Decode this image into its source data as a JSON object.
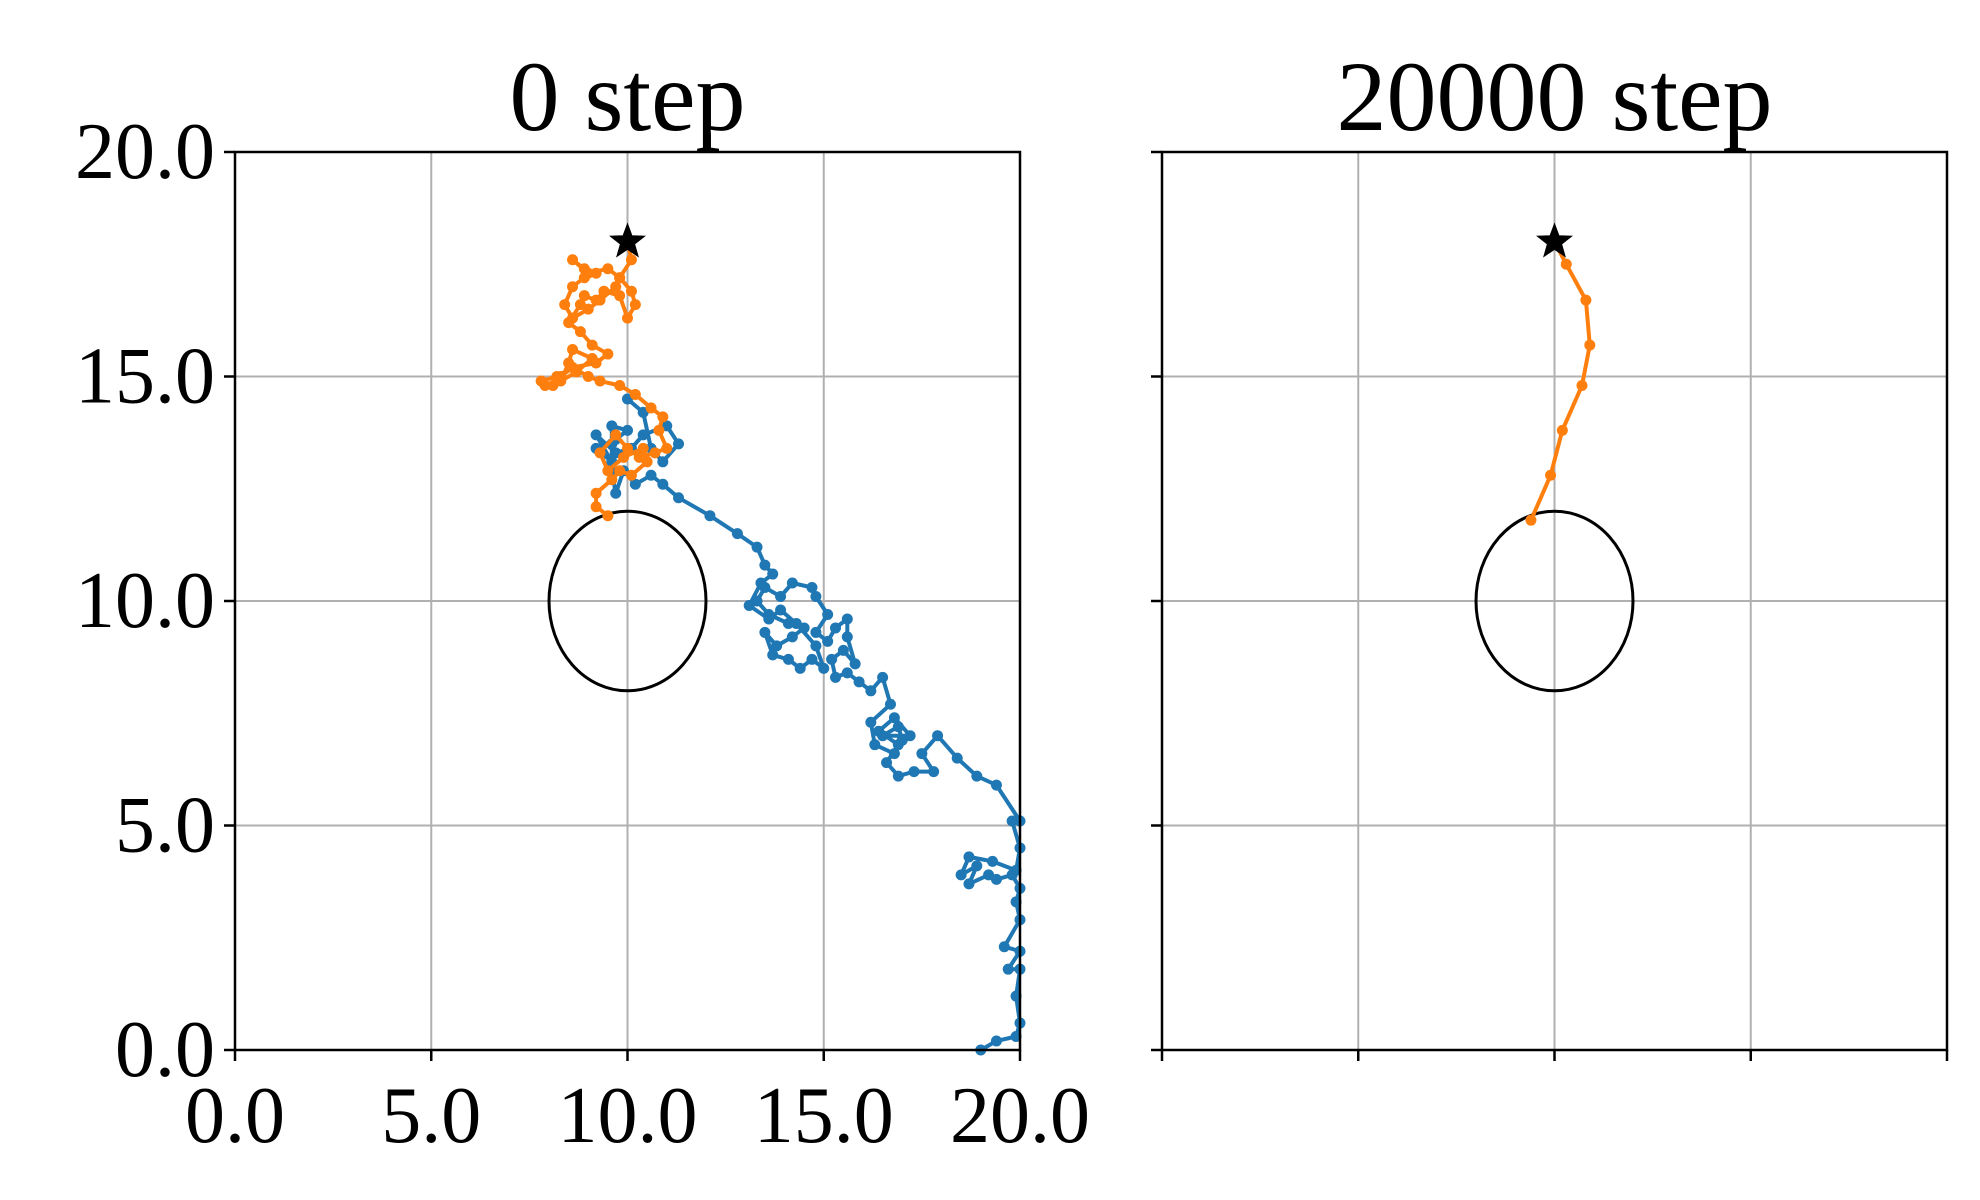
{
  "chart_data": [
    {
      "type": "line",
      "title": "0 step",
      "xlabel": "",
      "ylabel": "",
      "xlim": [
        0,
        20
      ],
      "ylim": [
        0,
        20
      ],
      "xticks": [
        0,
        5,
        10,
        15,
        20
      ],
      "yticks": [
        0,
        5,
        10,
        15,
        20
      ],
      "xtick_labels": [
        "0.0",
        "5.0",
        "10.0",
        "15.0",
        "20.0"
      ],
      "ytick_labels": [
        "0.0",
        "5.0",
        "10.0",
        "15.0",
        "20.0"
      ],
      "grid": true,
      "obstacle": {
        "cx": 10,
        "cy": 10,
        "rx": 2,
        "ry": 2,
        "color": "#000000"
      },
      "goal": {
        "x": 10,
        "y": 18,
        "marker": "star",
        "color": "#000000"
      },
      "series": [
        {
          "color": "#1f77b4",
          "points": [
            [
              19.0,
              0.0
            ],
            [
              19.4,
              0.2
            ],
            [
              19.9,
              0.3
            ],
            [
              20.0,
              0.6
            ],
            [
              19.9,
              1.2
            ],
            [
              20.0,
              1.8
            ],
            [
              19.7,
              1.8
            ],
            [
              20.0,
              2.2
            ],
            [
              19.6,
              2.3
            ],
            [
              20.0,
              2.9
            ],
            [
              19.9,
              3.3
            ],
            [
              20.0,
              3.6
            ],
            [
              19.8,
              3.9
            ],
            [
              19.4,
              3.8
            ],
            [
              19.2,
              3.9
            ],
            [
              18.7,
              3.7
            ],
            [
              18.9,
              4.1
            ],
            [
              18.5,
              3.9
            ],
            [
              18.7,
              4.3
            ],
            [
              19.3,
              4.2
            ],
            [
              19.9,
              4.0
            ],
            [
              20.0,
              4.5
            ],
            [
              19.8,
              5.1
            ],
            [
              20.0,
              5.1
            ],
            [
              19.4,
              5.9
            ],
            [
              18.9,
              6.1
            ],
            [
              18.4,
              6.5
            ],
            [
              17.9,
              7.0
            ],
            [
              17.5,
              6.6
            ],
            [
              17.8,
              6.2
            ],
            [
              17.3,
              6.2
            ],
            [
              16.9,
              6.1
            ],
            [
              16.6,
              6.4
            ],
            [
              16.9,
              6.8
            ],
            [
              16.4,
              7.1
            ],
            [
              16.8,
              7.4
            ],
            [
              17.2,
              7.0
            ],
            [
              16.5,
              7.0
            ],
            [
              16.9,
              7.2
            ],
            [
              17.0,
              6.9
            ],
            [
              16.8,
              6.6
            ],
            [
              16.3,
              6.8
            ],
            [
              16.2,
              7.3
            ],
            [
              16.7,
              7.7
            ],
            [
              16.5,
              8.3
            ],
            [
              16.2,
              8.0
            ],
            [
              15.9,
              8.2
            ],
            [
              15.6,
              8.4
            ],
            [
              15.3,
              8.3
            ],
            [
              15.2,
              8.7
            ],
            [
              15.5,
              8.9
            ],
            [
              15.8,
              8.6
            ],
            [
              15.6,
              9.2
            ],
            [
              15.6,
              9.6
            ],
            [
              15.3,
              9.4
            ],
            [
              15.1,
              9.1
            ],
            [
              14.8,
              9.3
            ],
            [
              15.1,
              9.7
            ],
            [
              14.8,
              10.1
            ],
            [
              14.7,
              10.3
            ],
            [
              14.2,
              10.4
            ],
            [
              13.9,
              10.1
            ],
            [
              13.5,
              10.3
            ],
            [
              13.3,
              10.0
            ],
            [
              13.6,
              9.7
            ],
            [
              14.1,
              9.5
            ],
            [
              14.5,
              9.4
            ],
            [
              14.2,
              9.2
            ],
            [
              13.8,
              9.0
            ],
            [
              13.5,
              9.3
            ],
            [
              13.7,
              8.8
            ],
            [
              14.1,
              8.7
            ],
            [
              14.4,
              8.5
            ],
            [
              14.7,
              8.7
            ],
            [
              15.0,
              8.5
            ],
            [
              14.8,
              9.0
            ],
            [
              14.3,
              9.5
            ],
            [
              13.9,
              9.8
            ],
            [
              13.6,
              9.6
            ],
            [
              13.1,
              9.9
            ],
            [
              13.4,
              10.4
            ],
            [
              13.7,
              10.6
            ],
            [
              13.5,
              10.8
            ],
            [
              13.3,
              11.2
            ],
            [
              12.8,
              11.5
            ],
            [
              12.1,
              11.9
            ],
            [
              11.3,
              12.3
            ],
            [
              10.9,
              12.6
            ],
            [
              10.6,
              12.8
            ],
            [
              10.2,
              12.6
            ],
            [
              9.9,
              12.9
            ],
            [
              9.7,
              12.4
            ],
            [
              9.6,
              12.9
            ],
            [
              9.6,
              13.5
            ],
            [
              9.6,
              13.9
            ],
            [
              10.0,
              13.8
            ],
            [
              9.7,
              13.6
            ],
            [
              9.2,
              13.4
            ],
            [
              9.6,
              13.1
            ],
            [
              9.2,
              13.7
            ],
            [
              9.7,
              13.3
            ],
            [
              10.1,
              13.4
            ],
            [
              10.4,
              13.7
            ],
            [
              11.0,
              13.9
            ],
            [
              11.3,
              13.5
            ],
            [
              10.9,
              13.1
            ],
            [
              10.6,
              13.4
            ],
            [
              10.4,
              14.2
            ],
            [
              10.0,
              14.5
            ]
          ]
        },
        {
          "color": "#ff7f0e",
          "points": [
            [
              9.5,
              11.9
            ],
            [
              9.2,
              12.1
            ],
            [
              9.2,
              12.4
            ],
            [
              9.6,
              12.7
            ],
            [
              9.8,
              12.9
            ],
            [
              10.1,
              12.8
            ],
            [
              10.5,
              13.1
            ],
            [
              10.4,
              13.4
            ],
            [
              9.9,
              13.2
            ],
            [
              9.5,
              12.9
            ],
            [
              9.3,
              13.3
            ],
            [
              9.7,
              13.7
            ],
            [
              10.0,
              13.4
            ],
            [
              10.3,
              13.2
            ],
            [
              10.7,
              13.3
            ],
            [
              11.0,
              13.4
            ],
            [
              10.8,
              13.8
            ],
            [
              10.9,
              14.1
            ],
            [
              10.6,
              14.3
            ],
            [
              10.2,
              14.6
            ],
            [
              9.8,
              14.8
            ],
            [
              9.3,
              14.9
            ],
            [
              9.0,
              15.0
            ],
            [
              8.6,
              15.2
            ],
            [
              8.3,
              15.0
            ],
            [
              8.1,
              14.8
            ],
            [
              8.7,
              15.1
            ],
            [
              9.1,
              15.4
            ],
            [
              8.6,
              15.6
            ],
            [
              8.5,
              15.3
            ],
            [
              8.3,
              14.9
            ],
            [
              7.9,
              14.8
            ],
            [
              7.8,
              14.9
            ],
            [
              8.2,
              15.0
            ],
            [
              8.6,
              15.2
            ],
            [
              9.2,
              15.3
            ],
            [
              9.5,
              15.5
            ],
            [
              9.1,
              15.7
            ],
            [
              8.8,
              16.0
            ],
            [
              8.5,
              16.2
            ],
            [
              8.8,
              16.6
            ],
            [
              8.9,
              16.8
            ],
            [
              9.2,
              16.7
            ],
            [
              9.4,
              16.9
            ],
            [
              9.8,
              16.8
            ],
            [
              10.0,
              16.3
            ],
            [
              10.2,
              16.6
            ],
            [
              10.1,
              16.9
            ],
            [
              9.8,
              17.2
            ],
            [
              9.7,
              17.0
            ],
            [
              9.3,
              16.7
            ],
            [
              9.0,
              16.5
            ],
            [
              8.6,
              16.3
            ],
            [
              8.4,
              16.6
            ],
            [
              8.6,
              17.0
            ],
            [
              8.9,
              17.2
            ],
            [
              9.2,
              17.3
            ],
            [
              8.9,
              17.4
            ],
            [
              8.6,
              17.6
            ],
            [
              9.0,
              17.3
            ],
            [
              9.5,
              17.4
            ],
            [
              9.8,
              17.2
            ],
            [
              10.1,
              17.6
            ],
            [
              10.0,
              18.0
            ]
          ]
        }
      ]
    },
    {
      "type": "line",
      "title": "20000 step",
      "xlabel": "",
      "ylabel": "",
      "xlim": [
        0,
        20
      ],
      "ylim": [
        0,
        20
      ],
      "xticks": [
        0,
        5,
        10,
        15,
        20
      ],
      "yticks": [
        0,
        5,
        10,
        15,
        20
      ],
      "xtick_labels": [],
      "ytick_labels": [],
      "grid": true,
      "obstacle": {
        "cx": 10,
        "cy": 10,
        "rx": 2,
        "ry": 2,
        "color": "#000000"
      },
      "goal": {
        "x": 10,
        "y": 18,
        "marker": "star",
        "color": "#000000"
      },
      "series": [
        {
          "color": "#ff7f0e",
          "points": [
            [
              9.4,
              11.8
            ],
            [
              9.9,
              12.8
            ],
            [
              10.2,
              13.8
            ],
            [
              10.7,
              14.8
            ],
            [
              10.9,
              15.7
            ],
            [
              10.8,
              16.7
            ],
            [
              10.3,
              17.5
            ],
            [
              10.0,
              18.0
            ]
          ]
        }
      ]
    }
  ]
}
